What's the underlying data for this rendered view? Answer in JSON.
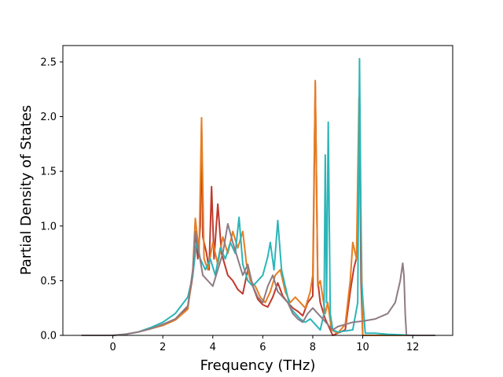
{
  "chart_data": {
    "type": "line",
    "title": "",
    "xlabel": "Frequency (THz)",
    "ylabel": "Partial Density of States",
    "xlim": [
      -2.0,
      13.6
    ],
    "ylim": [
      0.0,
      2.65
    ],
    "xticks": [
      0,
      2,
      4,
      6,
      8,
      10,
      12
    ],
    "yticks": [
      0.0,
      0.5,
      1.0,
      1.5,
      2.0,
      2.5
    ],
    "xtick_labels": [
      "0",
      "2",
      "4",
      "6",
      "8",
      "10",
      "12"
    ],
    "ytick_labels": [
      "0.0",
      "0.5",
      "1.0",
      "1.5",
      "2.0",
      "2.5"
    ],
    "grid": false,
    "legend": "none",
    "series": [
      {
        "color": "#c0392b",
        "points": [
          [
            -1.25,
            0
          ],
          [
            0,
            0
          ],
          [
            0.5,
            0.01
          ],
          [
            1.0,
            0.03
          ],
          [
            1.5,
            0.06
          ],
          [
            2.0,
            0.1
          ],
          [
            2.5,
            0.15
          ],
          [
            3.0,
            0.26
          ],
          [
            3.2,
            0.55
          ],
          [
            3.3,
            0.95
          ],
          [
            3.4,
            0.7
          ],
          [
            3.5,
            1.0
          ],
          [
            3.55,
            1.92
          ],
          [
            3.6,
            0.9
          ],
          [
            3.75,
            0.75
          ],
          [
            3.85,
            0.6
          ],
          [
            3.95,
            1.36
          ],
          [
            4.05,
            0.7
          ],
          [
            4.2,
            1.2
          ],
          [
            4.35,
            0.75
          ],
          [
            4.6,
            0.55
          ],
          [
            4.8,
            0.5
          ],
          [
            5.0,
            0.42
          ],
          [
            5.2,
            0.38
          ],
          [
            5.4,
            0.6
          ],
          [
            5.6,
            0.45
          ],
          [
            5.8,
            0.33
          ],
          [
            6.0,
            0.28
          ],
          [
            6.2,
            0.26
          ],
          [
            6.4,
            0.35
          ],
          [
            6.6,
            0.48
          ],
          [
            6.8,
            0.36
          ],
          [
            7.0,
            0.3
          ],
          [
            7.2,
            0.25
          ],
          [
            7.4,
            0.22
          ],
          [
            7.6,
            0.18
          ],
          [
            7.8,
            0.3
          ],
          [
            8.0,
            0.36
          ],
          [
            8.1,
            2.31
          ],
          [
            8.2,
            0.5
          ],
          [
            8.3,
            0.3
          ],
          [
            8.5,
            0.15
          ],
          [
            8.7,
            0.05
          ],
          [
            8.8,
            0.0
          ],
          [
            9.0,
            0.02
          ],
          [
            9.3,
            0.05
          ],
          [
            9.5,
            0.4
          ],
          [
            9.65,
            0.62
          ],
          [
            9.8,
            0.75
          ],
          [
            9.87,
            2.15
          ],
          [
            9.93,
            0.5
          ],
          [
            10.0,
            0.0
          ],
          [
            12.9,
            0
          ]
        ]
      },
      {
        "color": "#e67e22",
        "points": [
          [
            -1.25,
            0
          ],
          [
            0,
            0
          ],
          [
            0.5,
            0.01
          ],
          [
            1.0,
            0.03
          ],
          [
            1.5,
            0.06
          ],
          [
            2.0,
            0.09
          ],
          [
            2.5,
            0.14
          ],
          [
            3.0,
            0.24
          ],
          [
            3.2,
            0.6
          ],
          [
            3.3,
            1.07
          ],
          [
            3.45,
            0.75
          ],
          [
            3.55,
            1.99
          ],
          [
            3.65,
            0.7
          ],
          [
            3.8,
            0.6
          ],
          [
            4.0,
            0.85
          ],
          [
            4.2,
            0.65
          ],
          [
            4.4,
            0.9
          ],
          [
            4.6,
            0.75
          ],
          [
            4.8,
            0.95
          ],
          [
            5.0,
            0.8
          ],
          [
            5.2,
            0.95
          ],
          [
            5.35,
            0.65
          ],
          [
            5.5,
            0.5
          ],
          [
            5.7,
            0.45
          ],
          [
            5.9,
            0.35
          ],
          [
            6.1,
            0.3
          ],
          [
            6.3,
            0.4
          ],
          [
            6.5,
            0.55
          ],
          [
            6.7,
            0.6
          ],
          [
            6.9,
            0.4
          ],
          [
            7.1,
            0.3
          ],
          [
            7.3,
            0.35
          ],
          [
            7.5,
            0.3
          ],
          [
            7.7,
            0.25
          ],
          [
            7.9,
            0.4
          ],
          [
            8.0,
            0.55
          ],
          [
            8.1,
            2.33
          ],
          [
            8.2,
            0.45
          ],
          [
            8.3,
            0.5
          ],
          [
            8.5,
            0.2
          ],
          [
            8.6,
            0.3
          ],
          [
            8.75,
            0.05
          ],
          [
            9.0,
            0.02
          ],
          [
            9.3,
            0.1
          ],
          [
            9.5,
            0.5
          ],
          [
            9.6,
            0.85
          ],
          [
            9.75,
            0.7
          ],
          [
            9.85,
            2.18
          ],
          [
            9.92,
            1.2
          ],
          [
            10.0,
            0.0
          ],
          [
            12.9,
            0
          ]
        ]
      },
      {
        "color": "#2bb5b8",
        "points": [
          [
            -1.25,
            0
          ],
          [
            0,
            0
          ],
          [
            0.5,
            0.01
          ],
          [
            1.0,
            0.03
          ],
          [
            1.5,
            0.07
          ],
          [
            2.0,
            0.12
          ],
          [
            2.5,
            0.2
          ],
          [
            3.0,
            0.35
          ],
          [
            3.2,
            0.55
          ],
          [
            3.35,
            0.85
          ],
          [
            3.5,
            0.7
          ],
          [
            3.7,
            0.6
          ],
          [
            3.9,
            0.7
          ],
          [
            4.1,
            0.55
          ],
          [
            4.3,
            0.8
          ],
          [
            4.5,
            0.7
          ],
          [
            4.7,
            0.85
          ],
          [
            4.9,
            0.75
          ],
          [
            5.05,
            1.08
          ],
          [
            5.2,
            0.65
          ],
          [
            5.4,
            0.5
          ],
          [
            5.6,
            0.45
          ],
          [
            5.8,
            0.5
          ],
          [
            6.0,
            0.55
          ],
          [
            6.2,
            0.72
          ],
          [
            6.3,
            0.85
          ],
          [
            6.45,
            0.6
          ],
          [
            6.6,
            1.05
          ],
          [
            6.75,
            0.6
          ],
          [
            6.9,
            0.45
          ],
          [
            7.1,
            0.25
          ],
          [
            7.3,
            0.2
          ],
          [
            7.5,
            0.15
          ],
          [
            7.7,
            0.12
          ],
          [
            7.9,
            0.15
          ],
          [
            8.1,
            0.1
          ],
          [
            8.3,
            0.05
          ],
          [
            8.45,
            0.2
          ],
          [
            8.5,
            1.65
          ],
          [
            8.55,
            0.3
          ],
          [
            8.62,
            1.95
          ],
          [
            8.7,
            0.2
          ],
          [
            8.8,
            0.05
          ],
          [
            9.0,
            0.03
          ],
          [
            9.3,
            0.04
          ],
          [
            9.6,
            0.05
          ],
          [
            9.8,
            0.3
          ],
          [
            9.87,
            2.53
          ],
          [
            9.95,
            0.5
          ],
          [
            10.1,
            0.02
          ],
          [
            10.5,
            0.02
          ],
          [
            11.0,
            0.01
          ],
          [
            12.0,
            0.0
          ],
          [
            12.9,
            0
          ]
        ]
      },
      {
        "color": "#8e7b84",
        "points": [
          [
            -1.25,
            0
          ],
          [
            0,
            0
          ],
          [
            0.5,
            0.01
          ],
          [
            1.0,
            0.03
          ],
          [
            1.5,
            0.06
          ],
          [
            2.0,
            0.1
          ],
          [
            2.5,
            0.15
          ],
          [
            3.0,
            0.27
          ],
          [
            3.2,
            0.6
          ],
          [
            3.3,
            0.95
          ],
          [
            3.45,
            0.75
          ],
          [
            3.6,
            0.55
          ],
          [
            3.8,
            0.5
          ],
          [
            4.0,
            0.45
          ],
          [
            4.2,
            0.6
          ],
          [
            4.4,
            0.75
          ],
          [
            4.6,
            1.02
          ],
          [
            4.8,
            0.85
          ],
          [
            5.0,
            0.7
          ],
          [
            5.2,
            0.55
          ],
          [
            5.4,
            0.65
          ],
          [
            5.6,
            0.45
          ],
          [
            5.8,
            0.35
          ],
          [
            6.0,
            0.3
          ],
          [
            6.2,
            0.45
          ],
          [
            6.4,
            0.55
          ],
          [
            6.6,
            0.4
          ],
          [
            6.8,
            0.35
          ],
          [
            7.0,
            0.3
          ],
          [
            7.2,
            0.2
          ],
          [
            7.4,
            0.15
          ],
          [
            7.6,
            0.12
          ],
          [
            7.8,
            0.2
          ],
          [
            8.0,
            0.25
          ],
          [
            8.2,
            0.2
          ],
          [
            8.4,
            0.15
          ],
          [
            8.6,
            0.1
          ],
          [
            8.8,
            0.05
          ],
          [
            9.0,
            0.08
          ],
          [
            9.3,
            0.1
          ],
          [
            9.6,
            0.12
          ],
          [
            10.0,
            0.13
          ],
          [
            10.5,
            0.15
          ],
          [
            11.0,
            0.2
          ],
          [
            11.3,
            0.3
          ],
          [
            11.5,
            0.5
          ],
          [
            11.6,
            0.66
          ],
          [
            11.65,
            0.55
          ],
          [
            11.7,
            0.2
          ],
          [
            11.75,
            0.0
          ],
          [
            12.9,
            0
          ]
        ]
      }
    ]
  }
}
